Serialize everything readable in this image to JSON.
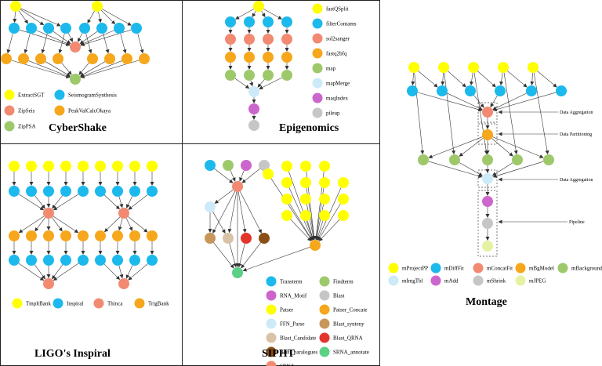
{
  "panels": {
    "cybershake": {
      "title": "CyberShake"
    },
    "epigenomics": {
      "title": "Epigenomics"
    },
    "ligo": {
      "title": "LIGO's Inspiral"
    },
    "sipht": {
      "title": "SIPHT"
    },
    "montage": {
      "title": "Montage"
    }
  },
  "colors": {
    "yellow": "#FFFF00",
    "cyan": "#1CB9EC",
    "salmon": "#F28A72",
    "orange": "#F6A71B",
    "green": "#9DC96B",
    "lightblue": "#CCEAF8",
    "purple": "#CC66CC",
    "gray": "#C6C6C6",
    "lightgreen": "#E6F2A2",
    "tan": "#C8955A",
    "beige": "#D9C3A8",
    "red": "#E3342B",
    "brown": "#8A4F14",
    "mint": "#5CD186"
  },
  "legends": {
    "cybershake": [
      {
        "label": "ExtractSGT",
        "color": "yellow"
      },
      {
        "label": "SeismogramSynthesis",
        "color": "cyan"
      },
      {
        "label": "ZipSeis",
        "color": "salmon"
      },
      {
        "label": "PeakValCalcOkaya",
        "color": "orange"
      },
      {
        "label": "ZipPSA",
        "color": "green"
      }
    ],
    "epigenomics": [
      {
        "label": "fastQSplit",
        "color": "yellow"
      },
      {
        "label": "filterContams",
        "color": "cyan"
      },
      {
        "label": "sol2sanger",
        "color": "salmon"
      },
      {
        "label": "fastq2bfq",
        "color": "orange"
      },
      {
        "label": "map",
        "color": "green"
      },
      {
        "label": "mapMerge",
        "color": "lightblue"
      },
      {
        "label": "maqIndex",
        "color": "purple"
      },
      {
        "label": "pileup",
        "color": "gray"
      }
    ],
    "ligo": [
      {
        "label": "TmpltBank",
        "color": "yellow"
      },
      {
        "label": "Inspiral",
        "color": "cyan"
      },
      {
        "label": "Thinca",
        "color": "salmon"
      },
      {
        "label": "TrigBank",
        "color": "orange"
      }
    ],
    "sipht": [
      {
        "label": "Transterm",
        "color": "cyan"
      },
      {
        "label": "Findterm",
        "color": "green"
      },
      {
        "label": "RNA_Motif",
        "color": "purple"
      },
      {
        "label": "Blast",
        "color": "gray"
      },
      {
        "label": "Patser",
        "color": "yellow"
      },
      {
        "label": "Patser_Concate",
        "color": "orange"
      },
      {
        "label": "FFN_Parse",
        "color": "lightblue"
      },
      {
        "label": "Blast_synteny",
        "color": "tan"
      },
      {
        "label": "Blast_Candidate",
        "color": "beige"
      },
      {
        "label": "Blast_QRNA",
        "color": "red"
      },
      {
        "label": "Blast_paralogues",
        "color": "brown"
      },
      {
        "label": "SRNA_annotate",
        "color": "mint"
      },
      {
        "label": "SRNA",
        "color": "salmon"
      }
    ],
    "montage": [
      {
        "label": "mProjectPP",
        "color": "yellow"
      },
      {
        "label": "mDiffFit",
        "color": "cyan"
      },
      {
        "label": "mConcatFit",
        "color": "salmon"
      },
      {
        "label": "mBgModel",
        "color": "orange"
      },
      {
        "label": "mBackground",
        "color": "green"
      },
      {
        "label": "mImgTbl",
        "color": "lightblue"
      },
      {
        "label": "mAdd",
        "color": "purple"
      },
      {
        "label": "mShrink",
        "color": "gray"
      },
      {
        "label": "mJPEG",
        "color": "lightgreen"
      }
    ]
  },
  "annotations": {
    "data_aggregation_1": "Data Aggregation",
    "data_partitioning": "Data Partitioning",
    "data_aggregation_2": "Data Aggregation",
    "pipeline": "Pipeline"
  }
}
